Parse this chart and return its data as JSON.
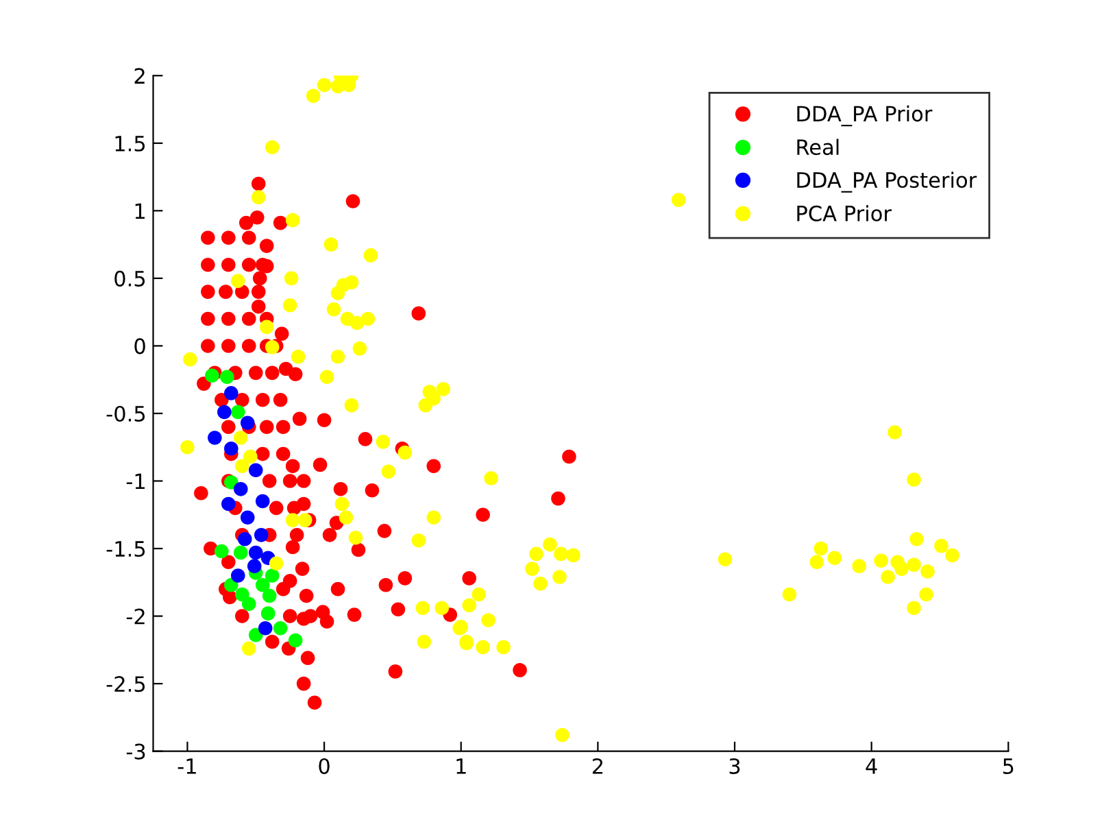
{
  "chart_data": {
    "type": "scatter",
    "xlim": [
      -1.25,
      5
    ],
    "ylim": [
      -3,
      2
    ],
    "xticks": [
      -1,
      0,
      1,
      2,
      3,
      4,
      5
    ],
    "yticks": [
      -3,
      -2.5,
      -2,
      -1.5,
      -1,
      -0.5,
      0,
      0.5,
      1,
      1.5,
      2
    ],
    "grid": false,
    "legend": "top right",
    "marker": "circle",
    "series": [
      {
        "name": "DDA_PA Prior",
        "color": "#ff0000",
        "x": [
          -0.85,
          -0.7,
          -0.55,
          -0.85,
          -0.7,
          -0.55,
          -0.45,
          -0.85,
          -0.72,
          -0.6,
          -0.48,
          -0.85,
          -0.7,
          -0.55,
          -0.42,
          -0.85,
          -0.7,
          -0.55,
          -0.42,
          -0.35,
          -0.8,
          -0.65,
          -0.5,
          -0.38,
          -0.75,
          -0.6,
          -0.45,
          -0.32,
          -0.7,
          -0.55,
          -0.42,
          -0.3,
          -0.68,
          -0.45,
          -0.3,
          -0.7,
          -0.4,
          -0.25,
          -0.65,
          -0.35,
          -0.22,
          -0.6,
          -0.4,
          -0.2,
          -0.7,
          -0.72,
          -0.3,
          -0.6,
          -0.25,
          -0.1,
          -0.48,
          -0.49,
          -0.57,
          -0.32,
          -0.42,
          -0.42,
          -0.47,
          -0.48,
          -0.31,
          0.21,
          0.69,
          -0.28,
          -0.21,
          -0.18,
          0,
          -0.88,
          0.3,
          0.57,
          0.8,
          -0.23,
          -0.03,
          -0.15,
          -0.9,
          0.12,
          0.35,
          -0.15,
          -0.11,
          0.09,
          0.04,
          0.44,
          0.25,
          -0.83,
          -0.23,
          -0.16,
          -0.25,
          0.1,
          0.45,
          0.59,
          -0.13,
          -0.01,
          0.02,
          -0.15,
          0.22,
          0.54,
          -0.38,
          -0.26,
          -0.12,
          0.52,
          -0.15,
          -0.07,
          -0.69,
          1.79,
          1.71,
          1.16,
          1.06,
          0.92,
          1.43
        ],
        "values": [
          0.8,
          0.8,
          0.8,
          0.6,
          0.6,
          0.6,
          0.6,
          0.4,
          0.4,
          0.4,
          0.4,
          0.2,
          0.2,
          0.2,
          0.2,
          0.0,
          0.0,
          0.0,
          0.0,
          0.0,
          -0.2,
          -0.2,
          -0.2,
          -0.2,
          -0.4,
          -0.4,
          -0.4,
          -0.4,
          -0.6,
          -0.6,
          -0.6,
          -0.6,
          -0.8,
          -0.8,
          -0.8,
          -1.0,
          -1.0,
          -1.0,
          -1.2,
          -1.2,
          -1.2,
          -1.4,
          -1.4,
          -1.4,
          -1.6,
          -1.8,
          -1.8,
          -2.0,
          -2.0,
          -2.0,
          1.2,
          0.95,
          0.91,
          0.91,
          0.74,
          0.59,
          0.5,
          0.29,
          0.09,
          1.07,
          0.24,
          -0.17,
          -0.21,
          -0.54,
          -0.55,
          -0.28,
          -0.69,
          -0.76,
          -0.89,
          -0.89,
          -0.88,
          -1.0,
          -1.09,
          -1.06,
          -1.07,
          -1.17,
          -1.29,
          -1.31,
          -1.4,
          -1.37,
          -1.51,
          -1.5,
          -1.49,
          -1.65,
          -1.74,
          -1.8,
          -1.77,
          -1.72,
          -1.85,
          -1.97,
          -2.04,
          -2.02,
          -1.99,
          -1.95,
          -2.19,
          -2.24,
          -2.31,
          -2.41,
          -2.5,
          -2.64,
          -1.86,
          -0.82,
          -1.13,
          -1.25,
          -1.72,
          -1.99,
          -2.4
        ]
      },
      {
        "name": "Real",
        "color": "#00ff00",
        "x": [
          -0.82,
          -0.71,
          -0.75,
          -0.68,
          -0.6,
          -0.55,
          -0.4,
          -0.38,
          -0.41,
          -0.32,
          -0.5,
          -0.21,
          -0.68,
          -0.61,
          -0.5,
          -0.45,
          -0.63
        ],
        "values": [
          -0.22,
          -0.23,
          -1.52,
          -1.77,
          -1.84,
          -1.91,
          -1.85,
          -1.7,
          -1.98,
          -2.09,
          -2.14,
          -2.18,
          -1.01,
          -1.53,
          -1.68,
          -1.77,
          -0.49
        ]
      },
      {
        "name": "DDA_PA Posterior",
        "color": "#0000ff",
        "x": [
          -0.68,
          -0.73,
          -0.56,
          -0.8,
          -0.68,
          -0.5,
          -0.61,
          -0.7,
          -0.45,
          -0.56,
          -0.46,
          -0.58,
          -0.5,
          -0.41,
          -0.51,
          -0.63,
          -0.43
        ],
        "values": [
          -0.35,
          -0.49,
          -0.57,
          -0.68,
          -0.76,
          -0.92,
          -1.06,
          -1.17,
          -1.15,
          -1.27,
          -1.4,
          -1.43,
          -1.53,
          -1.57,
          -1.63,
          -1.7,
          -2.09
        ]
      },
      {
        "name": "PCA Prior",
        "color": "#ffff00",
        "x": [
          -0.98,
          -1.0,
          -0.08,
          0.0,
          0.12,
          0.2,
          0.1,
          0.18,
          -0.38,
          -0.48,
          -0.23,
          -0.63,
          -0.24,
          0.05,
          0.34,
          -0.25,
          -0.42,
          -0.38,
          -0.19,
          0.1,
          0.14,
          0.2,
          0.07,
          0.17,
          0.24,
          0.32,
          0.1,
          0.26,
          0.02,
          0.77,
          0.74,
          0.8,
          0.87,
          0.2,
          0.43,
          0.59,
          0.47,
          0.13,
          0.16,
          0.23,
          0.69,
          0.8,
          -0.35,
          -0.23,
          -0.14,
          -0.61,
          -0.54,
          -0.6,
          -0.55,
          0.72,
          0.86,
          0.99,
          1.04,
          0.73,
          2.59,
          1.22,
          1.65,
          1.55,
          1.73,
          1.82,
          1.52,
          1.58,
          1.72,
          1.13,
          1.06,
          1.2,
          1.0,
          1.04,
          1.16,
          1.31,
          1.74,
          2.93,
          3.4,
          3.63,
          3.6,
          3.73,
          3.91,
          4.07,
          4.12,
          4.19,
          4.33,
          4.31,
          4.17,
          4.31,
          4.41,
          4.51,
          4.59,
          4.4,
          4.31,
          4.22
        ],
        "values": [
          -0.1,
          -0.75,
          1.85,
          1.93,
          2.0,
          2.0,
          1.92,
          1.93,
          1.47,
          1.1,
          0.93,
          0.48,
          0.5,
          0.75,
          0.67,
          0.3,
          0.14,
          -0.01,
          -0.08,
          0.39,
          0.45,
          0.47,
          0.27,
          0.2,
          0.17,
          0.2,
          -0.08,
          -0.02,
          -0.23,
          -0.34,
          -0.44,
          -0.39,
          -0.32,
          -0.44,
          -0.71,
          -0.79,
          -0.93,
          -1.17,
          -1.27,
          -1.42,
          -1.44,
          -1.27,
          -1.61,
          -1.29,
          -1.29,
          -0.68,
          -0.82,
          -0.89,
          -2.24,
          -1.94,
          -1.94,
          -2.09,
          -2.2,
          -2.19,
          1.08,
          -0.98,
          -1.47,
          -1.54,
          -1.54,
          -1.55,
          -1.65,
          -1.76,
          -1.71,
          -1.84,
          -1.92,
          -2.03,
          -2.08,
          -2.19,
          -2.23,
          -2.23,
          -2.88,
          -1.58,
          -1.84,
          -1.5,
          -1.6,
          -1.57,
          -1.63,
          -1.59,
          -1.71,
          -1.6,
          -1.43,
          -0.99,
          -0.64,
          -1.62,
          -1.67,
          -1.48,
          -1.55,
          -1.84,
          -1.94,
          -1.65
        ]
      }
    ]
  }
}
